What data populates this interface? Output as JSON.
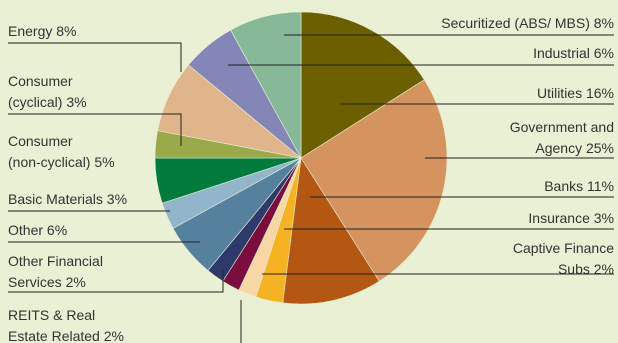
{
  "chart_data": {
    "type": "pie",
    "title": "",
    "slices": [
      {
        "label": "Securitized (ABS/ MBS) 8%",
        "value": 8,
        "color": "#6b5f00"
      },
      {
        "label": "Industrial 6%",
        "value": 6,
        "color": "#6b5f00"
      },
      {
        "label": "Utilities 16%",
        "value": 16,
        "color": "#6b5f00"
      },
      {
        "label": "Government and Agency 25%",
        "value": 25,
        "color": "#d4935f"
      },
      {
        "label": "Banks 11%",
        "value": 11,
        "color": "#b35712"
      },
      {
        "label": "Insurance 3%",
        "value": 3,
        "color": "#f5b323"
      },
      {
        "label": "Captive Finance Subs 2%",
        "value": 2,
        "color": "#f8d7a5"
      },
      {
        "label": "REITS & Real Estate Related 2%",
        "value": 2,
        "color": "#7a0c3e"
      },
      {
        "label": "Other Financial Services 2%",
        "value": 2,
        "color": "#2d3a6b"
      },
      {
        "label": "Other 6%",
        "value": 6,
        "color": "#55819f"
      },
      {
        "label": "Basic Materials 3%",
        "value": 3,
        "color": "#93b5cb"
      },
      {
        "label": "Consumer (non-cyclical) 5%",
        "value": 5,
        "color": "#007a3d"
      },
      {
        "label": "Consumer (cyclical) 3%",
        "value": 3,
        "color": "#9aa94a"
      },
      {
        "label": "Energy 8%",
        "value": 8,
        "color": "#e0b58b"
      },
      {
        "label": "Securitized (ABS/ MBS) 8%",
        "value": 8,
        "color": "#8486b7"
      },
      {
        "label": "Industrial 6%",
        "value": 6,
        "color": "#87b898"
      }
    ],
    "legend": "callout-labels"
  }
}
